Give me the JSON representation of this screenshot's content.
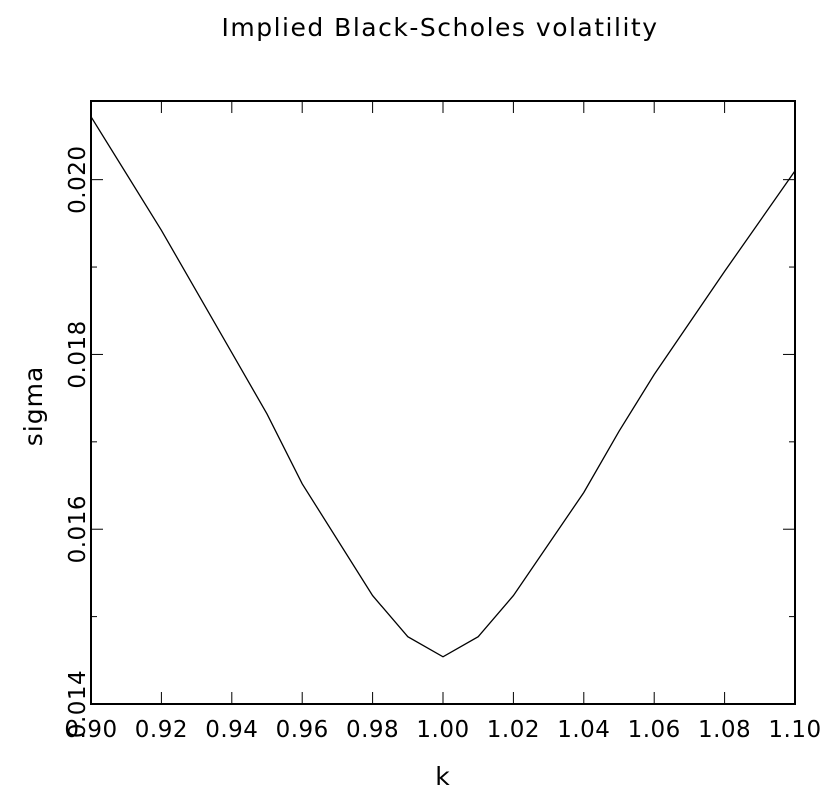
{
  "chart_data": {
    "type": "line",
    "title": "Implied Black-Scholes volatility",
    "xlabel": "k",
    "ylabel": "sigma",
    "xlim": [
      0.9,
      1.1
    ],
    "ylim": [
      0.014,
      0.0209
    ],
    "x_ticks": [
      0.9,
      0.92,
      0.94,
      0.96,
      0.98,
      1.0,
      1.02,
      1.04,
      1.06,
      1.08,
      1.1
    ],
    "x_tick_labels": [
      "0.90",
      "0.92",
      "0.94",
      "0.96",
      "0.98",
      "1.00",
      "1.02",
      "1.04",
      "1.06",
      "1.08",
      "1.10"
    ],
    "y_major_ticks": [
      0.014,
      0.016,
      0.018,
      0.02
    ],
    "y_tick_labels": [
      "0.014",
      "0.016",
      "0.018",
      "0.020"
    ],
    "y_minor_ticks": [
      0.015,
      0.017,
      0.019
    ],
    "grid": false,
    "series": [
      {
        "x": [
          0.9,
          0.92,
          0.94,
          0.95,
          0.96,
          0.98,
          0.99,
          1.0,
          1.01,
          1.02,
          1.04,
          1.05,
          1.06,
          1.08,
          1.1
        ],
        "values": [
          0.02072,
          0.01942,
          0.01802,
          0.01732,
          0.01652,
          0.01524,
          0.01477,
          0.01454,
          0.01477,
          0.01524,
          0.01642,
          0.01712,
          0.01777,
          0.01895,
          0.0201
        ],
        "color": "#000000"
      }
    ]
  }
}
